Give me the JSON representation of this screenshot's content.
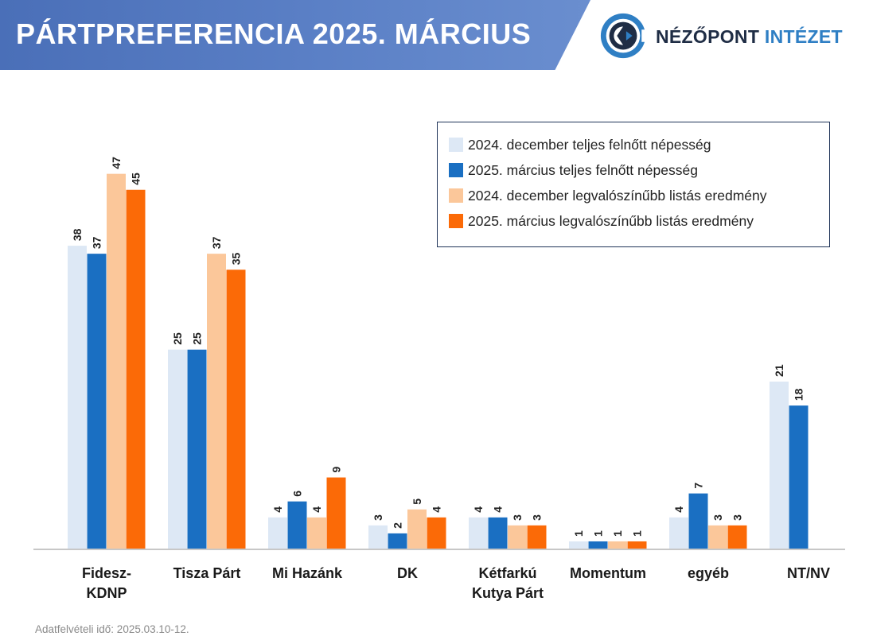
{
  "header": {
    "title": "PÁRTPREFERENCIA 2025. MÁRCIUS"
  },
  "logo": {
    "word1": "NÉZŐPONT",
    "word2": "INTÉZET"
  },
  "footer": {
    "note": "Adatfelvételi idő: 2025.03.10-12."
  },
  "chart_data": {
    "type": "bar",
    "title": "PÁRTPREFERENCIA 2025. MÁRCIUS",
    "xlabel": "",
    "ylabel": "",
    "ylim": [
      0,
      50
    ],
    "grid": false,
    "legend_position": "top-right",
    "categories": [
      [
        "Fidesz-",
        "KDNP"
      ],
      [
        "Tisza Párt"
      ],
      [
        "Mi Hazánk"
      ],
      [
        "DK"
      ],
      [
        "Kétfarkú",
        "Kutya Párt"
      ],
      [
        "Momentum"
      ],
      [
        "egyéb"
      ],
      [
        "NT/NV"
      ]
    ],
    "series": [
      {
        "name": "2024. december teljes felnőtt népesség",
        "color": "#dde8f5",
        "values": [
          38,
          25,
          4,
          3,
          4,
          1,
          4,
          21
        ]
      },
      {
        "name": "2025. március teljes felnőtt népesség",
        "color": "#1a6fc2",
        "values": [
          37,
          25,
          6,
          2,
          4,
          1,
          7,
          18
        ]
      },
      {
        "name": "2024. december legvalószínűbb listás eredmény",
        "color": "#fbc79a",
        "values": [
          47,
          37,
          4,
          5,
          3,
          1,
          3,
          null
        ]
      },
      {
        "name": "2025. március legvalószínűbb listás eredmény",
        "color": "#fb6a07",
        "values": [
          45,
          35,
          9,
          4,
          3,
          1,
          3,
          null
        ]
      }
    ]
  }
}
